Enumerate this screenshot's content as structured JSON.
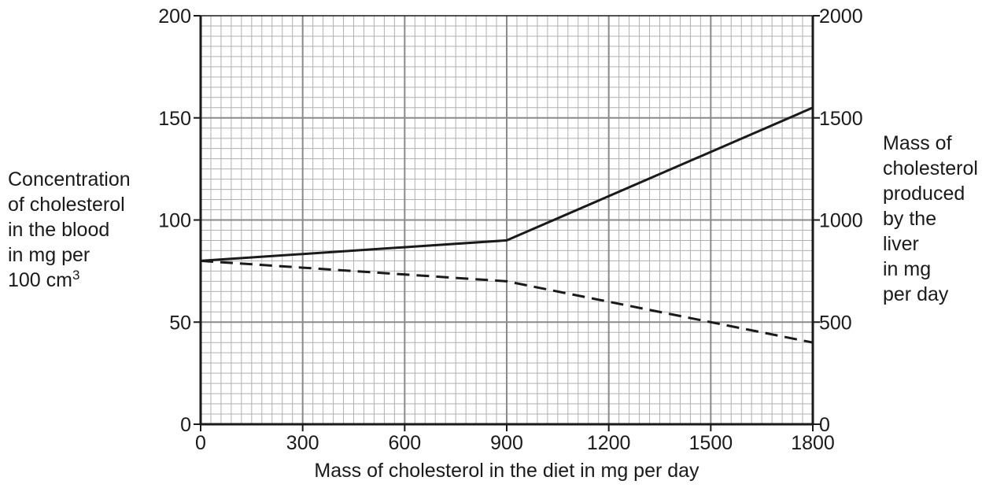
{
  "chart_data": {
    "type": "line",
    "xlabel": "Mass of cholesterol in the diet in mg per day",
    "ylabel_left": {
      "lines": [
        "Concentration",
        "of cholesterol",
        "in the blood",
        "in mg per"
      ],
      "last_line_text": "100 cm",
      "last_line_sup": "3"
    },
    "ylabel_right": {
      "lines": [
        "Mass of",
        "cholesterol",
        "produced",
        "by the",
        "liver",
        "in mg",
        "per day"
      ]
    },
    "x_ticks": [
      "0",
      "300",
      "600",
      "900",
      "1200",
      "1500",
      "1800"
    ],
    "y_left_ticks": [
      "0",
      "50",
      "100",
      "150",
      "200"
    ],
    "y_right_ticks": [
      "0",
      "500",
      "1000",
      "1500",
      "2000"
    ],
    "xlim": [
      0,
      1800
    ],
    "ylim_left": [
      0,
      200
    ],
    "ylim_right": [
      0,
      2000
    ],
    "grid": true,
    "series": [
      {
        "axis": "left",
        "style": "solid",
        "color": "#1a1a1a",
        "points": [
          [
            0,
            80
          ],
          [
            900,
            90
          ],
          [
            1800,
            155
          ]
        ]
      },
      {
        "axis": "right",
        "style": "dashed",
        "color": "#1a1a1a",
        "points": [
          [
            0,
            800
          ],
          [
            900,
            700
          ],
          [
            1500,
            500
          ],
          [
            1800,
            400
          ]
        ]
      }
    ]
  },
  "colors": {
    "minor_grid": "#b0b0b0",
    "major_grid": "#8a8a8a",
    "axis": "#1a1a1a"
  }
}
